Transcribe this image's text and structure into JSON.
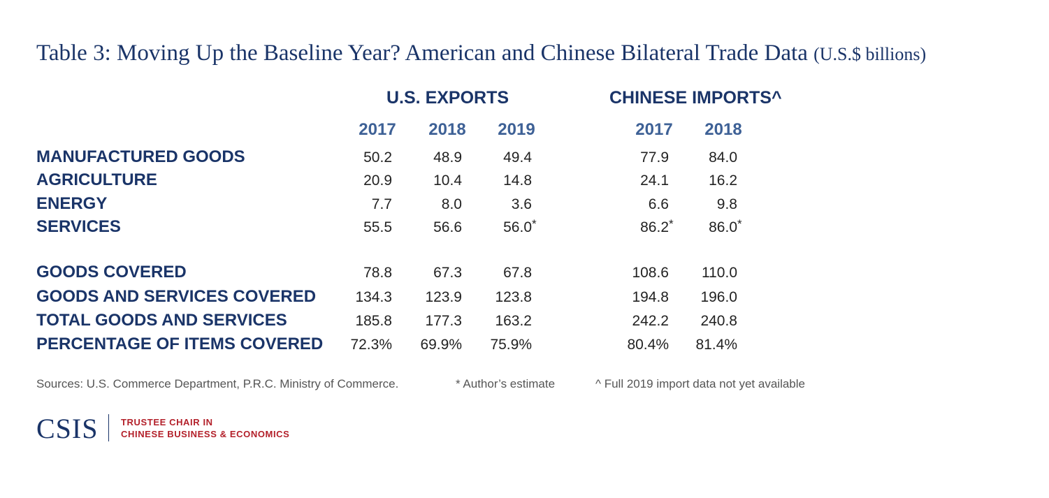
{
  "title": {
    "main": "Table 3: Moving Up the Baseline Year? American and Chinese Bilateral Trade Data",
    "unit": "(U.S.$ billions)"
  },
  "groups": {
    "us": "U.S. EXPORTS",
    "cn": "CHINESE IMPORTS^"
  },
  "years": {
    "us": [
      "2017",
      "2018",
      "2019"
    ],
    "cn": [
      "2017",
      "2018"
    ]
  },
  "rows": [
    {
      "label": "MANUFACTURED GOODS",
      "us": [
        "50.2",
        "48.9",
        "49.4"
      ],
      "cn": [
        "77.9",
        "84.0"
      ]
    },
    {
      "label": "AGRICULTURE",
      "us": [
        "20.9",
        "10.4",
        "14.8"
      ],
      "cn": [
        "24.1",
        "16.2"
      ]
    },
    {
      "label": "ENERGY",
      "us": [
        "7.7",
        "8.0",
        "3.6"
      ],
      "cn": [
        "6.6",
        "9.8"
      ]
    },
    {
      "label": "SERVICES",
      "us": [
        "55.5",
        "56.6",
        "56.0"
      ],
      "cn": [
        "86.2",
        "86.0"
      ]
    },
    {
      "label": "GOODS COVERED",
      "us": [
        "78.8",
        "67.3",
        "67.8"
      ],
      "cn": [
        "108.6",
        "110.0"
      ]
    },
    {
      "label": "GOODS AND SERVICES COVERED",
      "us": [
        "134.3",
        "123.9",
        "123.8"
      ],
      "cn": [
        "194.8",
        "196.0"
      ]
    },
    {
      "label": "TOTAL GOODS AND SERVICES",
      "us": [
        "185.8",
        "177.3",
        "163.2"
      ],
      "cn": [
        "242.2",
        "240.8"
      ]
    },
    {
      "label": "PERCENTAGE OF ITEMS COVERED",
      "us": [
        "72.3%",
        "69.9%",
        "75.9%"
      ],
      "cn": [
        "80.4%",
        "81.4%"
      ]
    }
  ],
  "estimate_marker": "*",
  "footnotes": {
    "sources": "Sources: U.S. Commerce Department, P.R.C. Ministry of Commerce.",
    "estimate": "* Author’s estimate",
    "caret": "^ Full 2019 import data not yet available"
  },
  "logo": {
    "name": "CSIS",
    "line1": "TRUSTEE CHAIR IN",
    "line2": "CHINESE BUSINESS & ECONOMICS"
  }
}
